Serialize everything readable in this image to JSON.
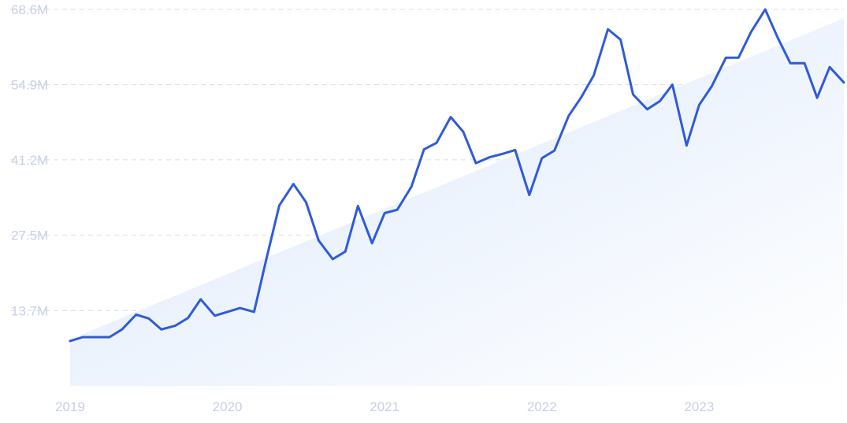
{
  "chart_data": {
    "type": "line",
    "title": "",
    "xlabel": "",
    "ylabel": "",
    "y_ticks": [
      "13.7M",
      "27.5M",
      "41.2M",
      "54.9M",
      "68.6M"
    ],
    "y_tick_values": [
      13.7,
      27.5,
      41.2,
      54.9,
      68.6
    ],
    "x_ticks": [
      "2019",
      "2020",
      "2021",
      "2022",
      "2023"
    ],
    "x_tick_values": [
      2019,
      2020,
      2021,
      2022,
      2023
    ],
    "xlim": [
      2019,
      2023.92
    ],
    "ylim": [
      0,
      68.6
    ],
    "grid": true,
    "colors": {
      "line": "#2f5bd8",
      "trend_fill_start": "#dbe8fb",
      "trend_fill_end": "#ffffff",
      "grid": "#d9deeb",
      "tick": "#c8cfe6"
    },
    "trend": {
      "x": [
        2019.0,
        2023.92
      ],
      "y": [
        8.5,
        67.0
      ]
    },
    "series": [
      {
        "x": [
          2019.0,
          2019.08,
          2019.17,
          2019.25,
          2019.33,
          2019.42,
          2019.5,
          2019.58,
          2019.67,
          2019.75,
          2019.83,
          2019.92,
          2020.0,
          2020.08,
          2020.17,
          2020.25,
          2020.33,
          2020.42,
          2020.5,
          2020.58,
          2020.67,
          2020.75,
          2020.83,
          2020.92,
          2021.0,
          2021.08,
          2021.17,
          2021.25,
          2021.33,
          2021.42,
          2021.5,
          2021.58,
          2021.67,
          2021.75,
          2021.83,
          2021.92,
          2022.0,
          2022.08,
          2022.17,
          2022.25,
          2022.33,
          2022.42,
          2022.5,
          2022.58,
          2022.67,
          2022.75,
          2022.83,
          2022.92,
          2023.0,
          2023.08,
          2023.17,
          2023.25,
          2023.33,
          2023.42,
          2023.5,
          2023.58,
          2023.67,
          2023.75,
          2023.83,
          2023.92
        ],
        "y": [
          8.2,
          8.9,
          8.9,
          8.9,
          10.3,
          13.0,
          12.3,
          10.3,
          11.0,
          12.4,
          15.8,
          12.8,
          13.5,
          14.2,
          13.5,
          23.4,
          32.9,
          36.8,
          33.5,
          26.5,
          23.1,
          24.5,
          32.8,
          26.0,
          31.5,
          32.1,
          36.3,
          43.1,
          44.3,
          49.0,
          46.3,
          40.6,
          41.7,
          42.3,
          43.0,
          34.8,
          41.5,
          42.9,
          49.2,
          52.6,
          56.6,
          65.0,
          63.1,
          53.1,
          50.4,
          51.9,
          54.9,
          43.8,
          51.2,
          54.6,
          59.8,
          59.8,
          64.5,
          68.6,
          63.4,
          58.8,
          58.8,
          52.5,
          58.1,
          55.3
        ]
      }
    ]
  }
}
